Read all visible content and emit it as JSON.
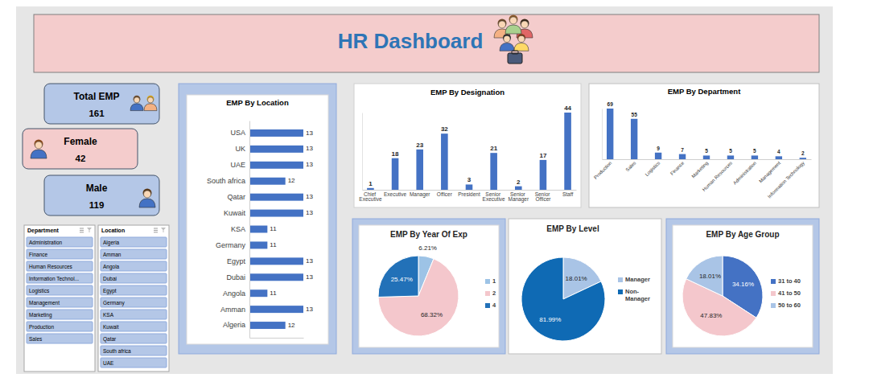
{
  "header": {
    "title": "HR Dashboard"
  },
  "kpis": [
    {
      "label": "Total EMP",
      "value": 161
    },
    {
      "label": "Female",
      "value": 42
    },
    {
      "label": "Male",
      "value": 119
    }
  ],
  "slicers": [
    {
      "title": "Department",
      "items": [
        "Administration",
        "Finance",
        "Human Resources",
        "Information Technol...",
        "Logistics",
        "Management",
        "Marketing",
        "Production",
        "Sales"
      ]
    },
    {
      "title": "Location",
      "items": [
        "Algeria",
        "Amman",
        "Angola",
        "Dubai",
        "Egypt",
        "Germany",
        "KSA",
        "Kuwait",
        "Qatar",
        "South africa",
        "UAE"
      ]
    }
  ],
  "chart_data": [
    {
      "type": "bar",
      "title": "EMP By Location",
      "orientation": "horizontal",
      "categories": [
        "USA",
        "UK",
        "UAE",
        "South africa",
        "Qatar",
        "Kuwait",
        "KSA",
        "Germany",
        "Egypt",
        "Dubai",
        "Angola",
        "Amman",
        "Algeria"
      ],
      "values": [
        13,
        13,
        13,
        12,
        13,
        13,
        11,
        11,
        13,
        13,
        11,
        13,
        12
      ],
      "color": "#4472c4",
      "xlim": [
        10,
        13
      ],
      "data_labels": true,
      "tick_labels": "y",
      "grid": false
    },
    {
      "type": "bar",
      "title": "EMP By Designation",
      "categories": [
        "Chief Executive",
        "Executive",
        "Manager",
        "Officer",
        "President",
        "Senior Executive",
        "Senior Manager",
        "Senior Officer",
        "Staff"
      ],
      "values": [
        1,
        18,
        23,
        32,
        3,
        21,
        2,
        17,
        44
      ],
      "color": "#4472c4",
      "ylim": [
        0,
        44
      ],
      "data_labels": true,
      "tick_labels": "x",
      "grid": false
    },
    {
      "type": "bar",
      "title": "EMP By Department",
      "categories": [
        "Production",
        "Sales",
        "Logistics",
        "Finance",
        "Marketing",
        "Human Resources",
        "Administration",
        "Management",
        "Information Technology"
      ],
      "values": [
        69,
        55,
        9,
        7,
        5,
        5,
        5,
        4,
        2
      ],
      "color": "#4472c4",
      "ylim": [
        0,
        69
      ],
      "data_labels": true,
      "tick_labels": "x",
      "grid": false
    },
    {
      "type": "pie",
      "title": "EMP By Year Of Exp",
      "categories": [
        "1",
        "2",
        "4"
      ],
      "values": [
        6.21,
        68.32,
        25.47
      ],
      "value_labels": [
        "6.21%",
        "68.32%",
        "25.47%"
      ],
      "colors": [
        "#9dc3e6",
        "#f4c7cc",
        "#2271b8"
      ],
      "data_labels": true,
      "legend": "right"
    },
    {
      "type": "pie",
      "title": "EMP By Level",
      "categories": [
        "Manager",
        "Non-Manager"
      ],
      "values": [
        18.01,
        81.99
      ],
      "value_labels": [
        "18.01%",
        "81.99%"
      ],
      "colors": [
        "#a9c4e6",
        "#0f6ab4"
      ],
      "data_labels": true,
      "legend": "right"
    },
    {
      "type": "pie",
      "title": "EMP By Age Group",
      "categories": [
        "31 to 40",
        "41 to 50",
        "50 to 60"
      ],
      "values": [
        34.16,
        47.83,
        18.01
      ],
      "value_labels": [
        "34.16%",
        "47.83%",
        "18.01%"
      ],
      "colors": [
        "#4472c4",
        "#f4c7cc",
        "#a9c4e6"
      ],
      "data_labels": true,
      "legend": "right"
    }
  ]
}
